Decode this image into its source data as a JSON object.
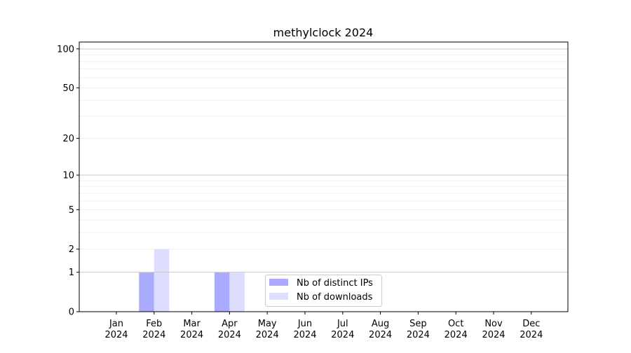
{
  "chart_data": {
    "type": "bar",
    "title": "methylclock 2024",
    "xlabel": "",
    "ylabel": "",
    "yscale": "log(1+y)",
    "ylim": [
      0,
      113
    ],
    "yticks": [
      0,
      1,
      2,
      5,
      10,
      20,
      50,
      100
    ],
    "grid": true,
    "legend_placement": "lower center",
    "categories": [
      "Jan\n2024",
      "Feb\n2024",
      "Mar\n2024",
      "Apr\n2024",
      "May\n2024",
      "Jun\n2024",
      "Jul\n2024",
      "Aug\n2024",
      "Sep\n2024",
      "Oct\n2024",
      "Nov\n2024",
      "Dec\n2024"
    ],
    "series": [
      {
        "name": "Nb of distinct IPs",
        "color": "#aaaaff",
        "values": [
          0,
          1,
          0,
          1,
          0,
          0,
          0,
          0,
          0,
          0,
          0,
          0
        ]
      },
      {
        "name": "Nb of downloads",
        "color": "#ddddff",
        "values": [
          0,
          2,
          0,
          1,
          0,
          0,
          0,
          0,
          0,
          0,
          0,
          0
        ]
      }
    ]
  }
}
